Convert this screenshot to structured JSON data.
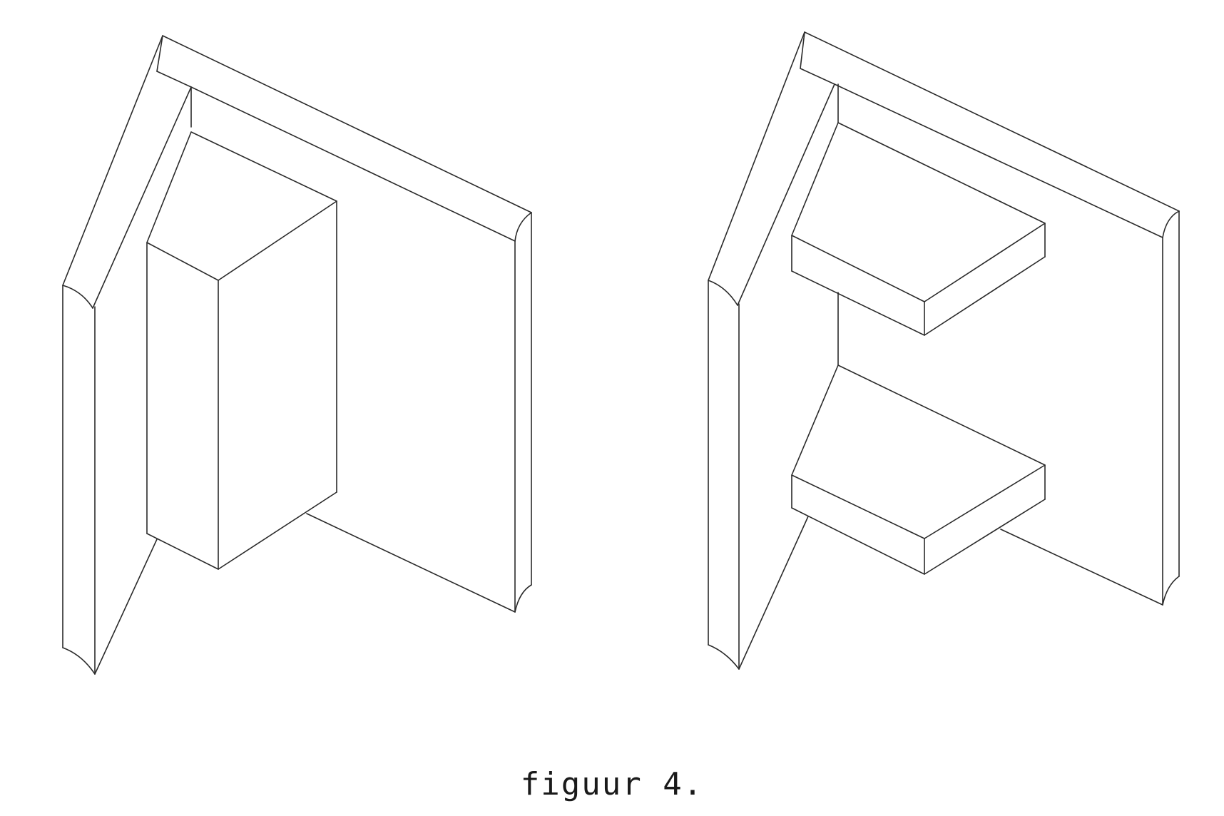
{
  "caption": "figuur 4.",
  "figures": [
    {
      "name": "corner-with-pillar"
    },
    {
      "name": "corner-with-shelves"
    }
  ],
  "colors": {
    "line": "#2a2a2a",
    "background": "#ffffff"
  }
}
